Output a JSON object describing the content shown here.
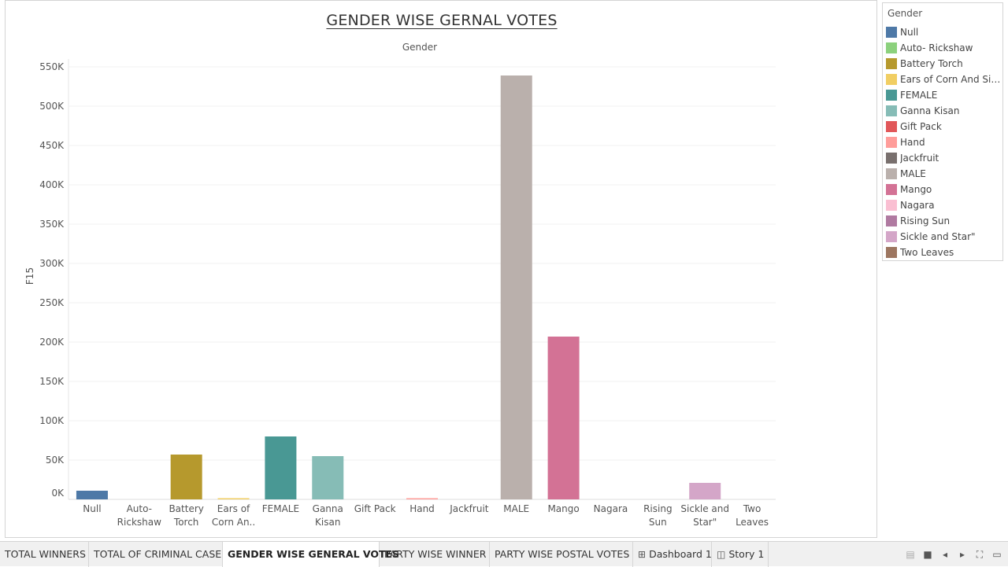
{
  "chart_data": {
    "type": "bar",
    "title": "GENDER WISE GERNAL VOTES",
    "xlabel": "Gender",
    "ylabel": "F15",
    "ylim": [
      0,
      560000
    ],
    "yticks": [
      0,
      50000,
      100000,
      150000,
      200000,
      250000,
      300000,
      350000,
      400000,
      450000,
      500000,
      550000
    ],
    "ytick_labels": [
      "0K",
      "50K",
      "100K",
      "150K",
      "200K",
      "250K",
      "300K",
      "350K",
      "400K",
      "450K",
      "500K",
      "550K"
    ],
    "grid": true,
    "legend_placement": "right",
    "categories": [
      "Null",
      "Auto- Rickshaw",
      "Battery Torch",
      "Ears of Corn An..",
      "FEMALE",
      "Ganna Kisan",
      "Gift Pack",
      "Hand",
      "Jackfruit",
      "MALE",
      "Mango",
      "Nagara",
      "Rising Sun",
      "Sickle and Star\"",
      "Two Leaves"
    ],
    "category_lines": [
      [
        "Null"
      ],
      [
        "Auto-",
        "Rickshaw"
      ],
      [
        "Battery",
        "Torch"
      ],
      [
        "Ears of",
        "Corn An.."
      ],
      [
        "FEMALE"
      ],
      [
        "Ganna",
        "Kisan"
      ],
      [
        "Gift Pack"
      ],
      [
        "Hand"
      ],
      [
        "Jackfruit"
      ],
      [
        "MALE"
      ],
      [
        "Mango"
      ],
      [
        "Nagara"
      ],
      [
        "Rising",
        "Sun"
      ],
      [
        "Sickle and",
        "Star\""
      ],
      [
        "Two",
        "Leaves"
      ]
    ],
    "values": [
      11000,
      0,
      57000,
      1500,
      80000,
      55000,
      0,
      1500,
      0,
      539000,
      207000,
      0,
      0,
      21000,
      0
    ],
    "colors": [
      "#4e79a7",
      "#8cd17d",
      "#b6992d",
      "#f1ce63",
      "#499894",
      "#86bcb6",
      "#e15759",
      "#ff9d9a",
      "#79706e",
      "#bab0ac",
      "#d37295",
      "#fabfd2",
      "#b07aa1",
      "#d4a6c8",
      "#9d7660"
    ]
  },
  "legend": {
    "title": "Gender",
    "items": [
      {
        "label": "Null",
        "color": "#4e79a7"
      },
      {
        "label": "Auto- Rickshaw",
        "color": "#8cd17d"
      },
      {
        "label": "Battery Torch",
        "color": "#b6992d"
      },
      {
        "label": "Ears of Corn And Sick..",
        "color": "#f1ce63"
      },
      {
        "label": "FEMALE",
        "color": "#499894"
      },
      {
        "label": "Ganna Kisan",
        "color": "#86bcb6"
      },
      {
        "label": "Gift Pack",
        "color": "#e15759"
      },
      {
        "label": "Hand",
        "color": "#ff9d9a"
      },
      {
        "label": "Jackfruit",
        "color": "#79706e"
      },
      {
        "label": "MALE",
        "color": "#bab0ac"
      },
      {
        "label": "Mango",
        "color": "#d37295"
      },
      {
        "label": "Nagara",
        "color": "#fabfd2"
      },
      {
        "label": "Rising Sun",
        "color": "#b07aa1"
      },
      {
        "label": "Sickle and Star\"",
        "color": "#d4a6c8"
      },
      {
        "label": "Two Leaves",
        "color": "#9d7660"
      }
    ]
  },
  "tabs": [
    {
      "label": "TOTAL WINNERS",
      "active": false,
      "icon": ""
    },
    {
      "label": "TOTAL OF CRIMINAL CASE",
      "active": false,
      "icon": ""
    },
    {
      "label": "GENDER WISE GENERAL VOTES",
      "active": true,
      "icon": ""
    },
    {
      "label": "PARTY WISE WINNER",
      "active": false,
      "icon": ""
    },
    {
      "label": "PARTY WISE POSTAL VOTES",
      "active": false,
      "icon": ""
    },
    {
      "label": "Dashboard 1",
      "active": false,
      "icon": "dashboard-icon"
    },
    {
      "label": "Story 1",
      "active": false,
      "icon": "story-icon"
    }
  ],
  "controls": [
    "filmstrip-icon",
    "tabs-icon",
    "prev-icon",
    "next-icon",
    "fullscreen-icon",
    "present-icon"
  ]
}
